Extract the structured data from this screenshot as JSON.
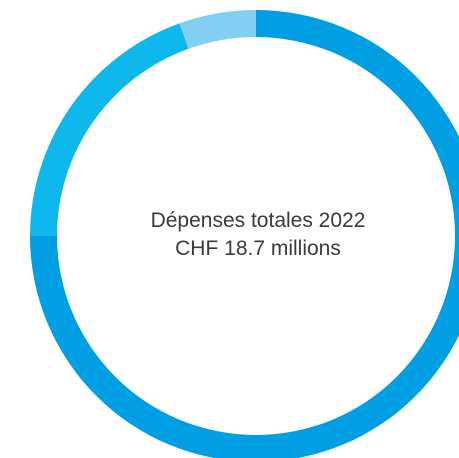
{
  "chart_data": {
    "type": "pie",
    "variant": "donut",
    "title_line1": "Dépenses totales 2022",
    "title_line2": "CHF 18.7 millions",
    "slices": [
      {
        "value": 75,
        "color": "#009fe3"
      },
      {
        "value": 19.5,
        "color": "#0fb8ec"
      },
      {
        "value": 5.5,
        "color": "#82cff4"
      }
    ]
  }
}
